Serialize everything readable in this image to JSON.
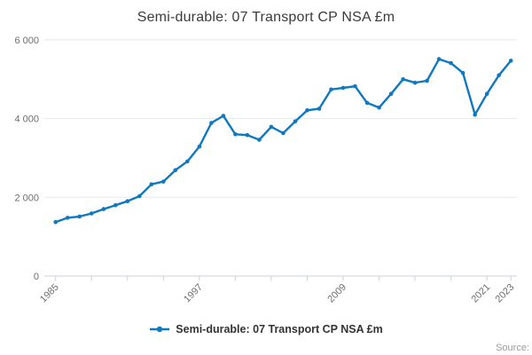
{
  "page": {
    "title": "Semi-durable: 07 Transport CP NSA £m"
  },
  "legend": {
    "label": "Semi-durable: 07 Transport CP NSA £m"
  },
  "footer": {
    "source_label": "Source:"
  },
  "colors": {
    "line": "#1078be",
    "grid": "#e8e8e8",
    "axis": "#ccd1e0",
    "tick_label": "#6e6e6e",
    "title_text": "#3b3b3b",
    "legend_text": "#333333",
    "source_text": "#9b9b9b"
  },
  "chart_data": {
    "type": "line",
    "title": "Semi-durable: 07 Transport CP NSA £m",
    "grid": "horizontal",
    "legend_position": "bottom",
    "ylim": [
      0,
      6000
    ],
    "y_ticks": [
      {
        "value": 0,
        "label": "0"
      },
      {
        "value": 2000,
        "label": "2 000"
      },
      {
        "value": 4000,
        "label": "4 000"
      },
      {
        "value": 6000,
        "label": "6 000"
      }
    ],
    "x_ticks": [
      1985,
      1988,
      1991,
      1994,
      1997,
      2000,
      2003,
      2006,
      2009,
      2012,
      2015,
      2018,
      2021,
      2023
    ],
    "x_labeled_ticks": [
      1985,
      1997,
      2009,
      2021,
      2023
    ],
    "series": [
      {
        "name": "Semi-durable: 07 Transport CP NSA £m",
        "x": [
          1985,
          1986,
          1987,
          1988,
          1989,
          1990,
          1991,
          1992,
          1993,
          1994,
          1995,
          1996,
          1997,
          1998,
          1999,
          2000,
          2001,
          2002,
          2003,
          2004,
          2005,
          2006,
          2007,
          2008,
          2009,
          2010,
          2011,
          2012,
          2013,
          2014,
          2015,
          2016,
          2017,
          2018,
          2019,
          2020,
          2021,
          2022,
          2023
        ],
        "values": [
          1370,
          1480,
          1510,
          1590,
          1700,
          1800,
          1900,
          2030,
          2330,
          2400,
          2690,
          2910,
          3290,
          3890,
          4070,
          3600,
          3580,
          3460,
          3790,
          3630,
          3930,
          4210,
          4250,
          4740,
          4780,
          4820,
          4400,
          4280,
          4630,
          5000,
          4910,
          4960,
          5510,
          5410,
          5160,
          4100,
          4630,
          5100,
          5470
        ]
      }
    ]
  }
}
